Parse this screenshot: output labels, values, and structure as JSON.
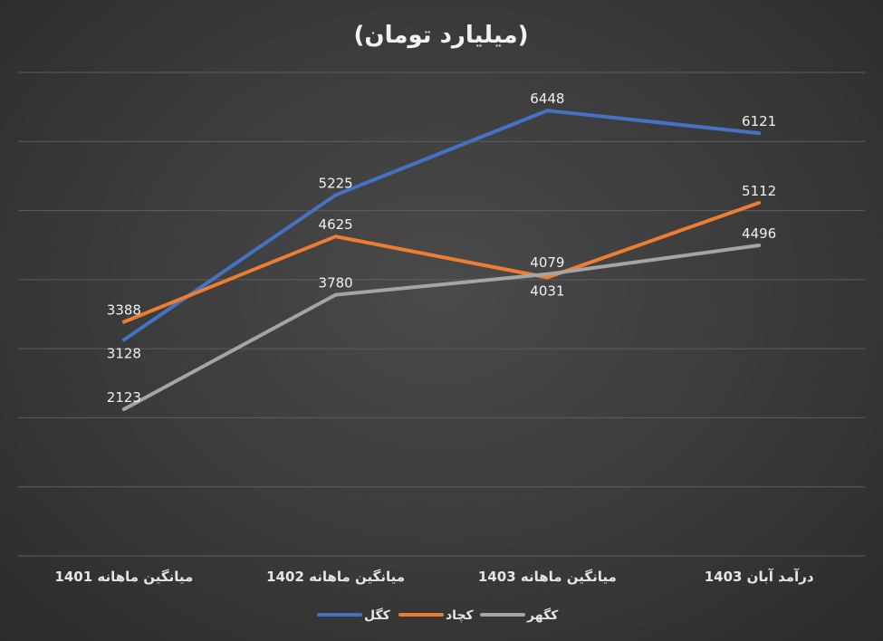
{
  "chart_data": {
    "type": "line",
    "title": "(میلیارد تومان)",
    "categories": [
      "میانگین ماهانه 1401",
      "میانگین ماهانه 1402",
      "میانگین ماهانه 1403",
      "درآمد آبان 1403"
    ],
    "series": [
      {
        "name": "کگل",
        "color": "#4472C4",
        "values": [
          3128,
          5225,
          6448,
          6121
        ]
      },
      {
        "name": "کچاد",
        "color": "#ED7D31",
        "values": [
          3388,
          4625,
          4031,
          5112
        ]
      },
      {
        "name": "کگهر",
        "color": "#A5A5A5",
        "values": [
          2123,
          3780,
          4079,
          4496
        ]
      }
    ],
    "ylim": [
      0,
      7000
    ],
    "y_gridlines": [
      0,
      1000,
      2000,
      3000,
      4000,
      5000,
      6000,
      7000
    ],
    "y_tick_labels_shown": false,
    "grid": true,
    "legend": "bottom-center",
    "xlabel": "",
    "ylabel": ""
  }
}
